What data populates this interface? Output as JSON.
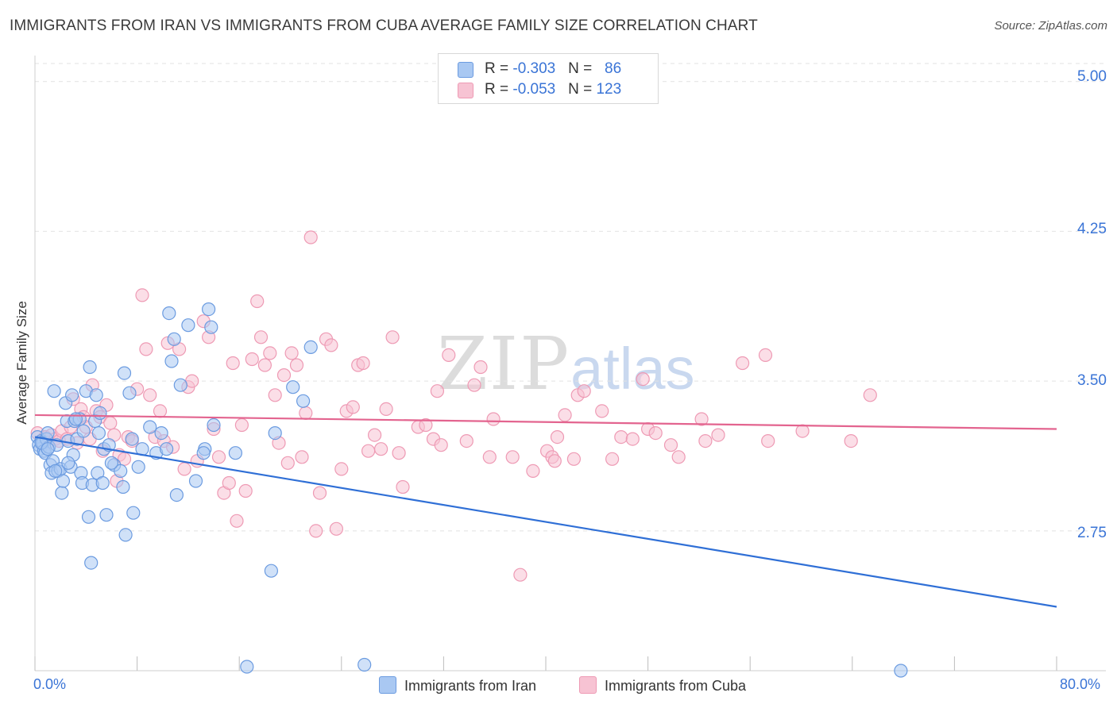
{
  "title": "IMMIGRANTS FROM IRAN VS IMMIGRANTS FROM CUBA AVERAGE FAMILY SIZE CORRELATION CHART",
  "source": "Source: ZipAtlas.com",
  "watermark": {
    "zip": "ZIP",
    "atlas": "atlas"
  },
  "legend": {
    "iran": {
      "r_label": "R = ",
      "r_value": "-0.303",
      "n_label": "N = ",
      "n_value": "86"
    },
    "cuba": {
      "r_label": "R = ",
      "r_value": "-0.053",
      "n_label": "N = ",
      "n_value": "123"
    }
  },
  "colors": {
    "iran_fill": "#a9c8f2",
    "iran_stroke": "#6b9be0",
    "iran_line": "#2f6fd6",
    "cuba_fill": "#f7c3d3",
    "cuba_stroke": "#ee9ab4",
    "cuba_line": "#e3648f",
    "axis_text": "#3a74d6",
    "grid": "#e2e2e2"
  },
  "chart_data": {
    "type": "scatter",
    "title": "IMMIGRANTS FROM IRAN VS IMMIGRANTS FROM CUBA AVERAGE FAMILY SIZE CORRELATION CHART",
    "xlabel": "",
    "ylabel": "Average Family Size",
    "x_tick_labels": [
      "0.0%",
      "80.0%"
    ],
    "y_tick_labels": [
      "5.00",
      "4.25",
      "3.50",
      "2.75"
    ],
    "y_ticks": [
      5.0,
      4.25,
      3.5,
      2.75
    ],
    "xlim": [
      0,
      80
    ],
    "ylim": [
      2.05,
      5.13
    ],
    "grid": true,
    "legend_position": "bottom",
    "series": [
      {
        "name": "Immigrants from Iran",
        "r": -0.303,
        "n": 86,
        "trend": {
          "x": [
            0,
            80
          ],
          "y": [
            3.22,
            2.37
          ]
        },
        "points": [
          [
            0.2,
            3.22
          ],
          [
            0.3,
            3.18
          ],
          [
            0.4,
            3.16
          ],
          [
            0.5,
            3.2
          ],
          [
            0.6,
            3.19
          ],
          [
            0.7,
            3.15
          ],
          [
            0.8,
            3.14
          ],
          [
            0.9,
            3.21
          ],
          [
            1.0,
            3.24
          ],
          [
            1.1,
            3.17
          ],
          [
            1.2,
            3.08
          ],
          [
            1.3,
            3.04
          ],
          [
            1.4,
            3.1
          ],
          [
            1.5,
            3.45
          ],
          [
            1.7,
            3.18
          ],
          [
            1.8,
            3.05
          ],
          [
            2.0,
            3.06
          ],
          [
            2.1,
            2.94
          ],
          [
            2.2,
            3.0
          ],
          [
            2.4,
            3.39
          ],
          [
            2.5,
            3.3
          ],
          [
            2.6,
            3.2
          ],
          [
            2.8,
            3.07
          ],
          [
            2.9,
            3.43
          ],
          [
            3.0,
            3.13
          ],
          [
            3.1,
            3.3
          ],
          [
            3.3,
            3.21
          ],
          [
            3.5,
            3.31
          ],
          [
            3.6,
            3.04
          ],
          [
            3.7,
            2.99
          ],
          [
            3.8,
            3.25
          ],
          [
            4.0,
            3.45
          ],
          [
            4.2,
            2.82
          ],
          [
            4.3,
            3.57
          ],
          [
            4.4,
            2.59
          ],
          [
            4.5,
            2.98
          ],
          [
            4.7,
            3.3
          ],
          [
            4.8,
            3.43
          ],
          [
            4.9,
            3.04
          ],
          [
            5.0,
            3.24
          ],
          [
            5.1,
            3.34
          ],
          [
            5.3,
            2.99
          ],
          [
            5.4,
            3.16
          ],
          [
            5.6,
            2.83
          ],
          [
            5.8,
            3.18
          ],
          [
            6.2,
            3.08
          ],
          [
            6.7,
            3.05
          ],
          [
            6.9,
            2.97
          ],
          [
            7.0,
            3.54
          ],
          [
            7.1,
            2.73
          ],
          [
            7.4,
            3.44
          ],
          [
            7.6,
            3.21
          ],
          [
            7.7,
            2.84
          ],
          [
            8.1,
            3.07
          ],
          [
            8.4,
            3.16
          ],
          [
            9.0,
            3.27
          ],
          [
            9.5,
            3.14
          ],
          [
            9.9,
            3.24
          ],
          [
            10.3,
            3.16
          ],
          [
            10.5,
            3.84
          ],
          [
            10.7,
            3.6
          ],
          [
            10.9,
            3.71
          ],
          [
            11.1,
            2.93
          ],
          [
            11.4,
            3.48
          ],
          [
            12.0,
            3.78
          ],
          [
            12.6,
            3.0
          ],
          [
            13.3,
            3.16
          ],
          [
            13.6,
            3.86
          ],
          [
            13.8,
            3.77
          ],
          [
            13.2,
            3.14
          ],
          [
            14.0,
            3.28
          ],
          [
            15.7,
            3.14
          ],
          [
            16.6,
            2.07
          ],
          [
            18.5,
            2.55
          ],
          [
            18.8,
            3.24
          ],
          [
            20.2,
            3.47
          ],
          [
            21.0,
            3.4
          ],
          [
            21.6,
            3.67
          ],
          [
            25.8,
            2.08
          ],
          [
            67.8,
            2.05
          ],
          [
            0.5,
            3.19
          ],
          [
            1.0,
            3.16
          ],
          [
            1.6,
            3.05
          ],
          [
            2.6,
            3.09
          ],
          [
            3.2,
            3.31
          ],
          [
            6.0,
            3.09
          ]
        ]
      },
      {
        "name": "Immigrants from Cuba",
        "r": -0.053,
        "n": 123,
        "trend": {
          "x": [
            0,
            80
          ],
          "y": [
            3.33,
            3.26
          ]
        },
        "points": [
          [
            0.2,
            3.24
          ],
          [
            0.5,
            3.2
          ],
          [
            0.8,
            3.22
          ],
          [
            1.0,
            3.19
          ],
          [
            1.3,
            3.23
          ],
          [
            1.6,
            3.21
          ],
          [
            1.9,
            3.2
          ],
          [
            2.1,
            3.25
          ],
          [
            2.5,
            3.21
          ],
          [
            2.8,
            3.27
          ],
          [
            3.0,
            3.41
          ],
          [
            3.3,
            3.19
          ],
          [
            3.6,
            3.36
          ],
          [
            3.8,
            3.32
          ],
          [
            4.0,
            3.27
          ],
          [
            4.3,
            3.21
          ],
          [
            4.5,
            3.48
          ],
          [
            4.8,
            3.35
          ],
          [
            5.1,
            3.32
          ],
          [
            5.3,
            3.15
          ],
          [
            5.6,
            3.38
          ],
          [
            5.9,
            3.29
          ],
          [
            6.2,
            3.23
          ],
          [
            6.4,
            3.0
          ],
          [
            6.6,
            3.13
          ],
          [
            7.0,
            3.11
          ],
          [
            7.3,
            3.22
          ],
          [
            7.6,
            3.2
          ],
          [
            8.0,
            3.46
          ],
          [
            8.4,
            3.93
          ],
          [
            8.7,
            3.66
          ],
          [
            9.0,
            3.43
          ],
          [
            9.4,
            3.22
          ],
          [
            9.8,
            3.35
          ],
          [
            10.1,
            3.2
          ],
          [
            10.4,
            3.69
          ],
          [
            10.8,
            3.17
          ],
          [
            11.3,
            3.66
          ],
          [
            11.7,
            3.06
          ],
          [
            12.0,
            3.47
          ],
          [
            12.3,
            3.5
          ],
          [
            12.7,
            3.1
          ],
          [
            13.2,
            3.8
          ],
          [
            13.6,
            3.72
          ],
          [
            14.0,
            3.26
          ],
          [
            14.4,
            3.12
          ],
          [
            14.8,
            2.94
          ],
          [
            15.2,
            2.99
          ],
          [
            15.5,
            3.59
          ],
          [
            15.8,
            2.8
          ],
          [
            16.2,
            3.28
          ],
          [
            16.5,
            2.95
          ],
          [
            17.0,
            3.61
          ],
          [
            17.4,
            3.9
          ],
          [
            17.7,
            3.72
          ],
          [
            18.0,
            3.58
          ],
          [
            18.4,
            3.64
          ],
          [
            18.8,
            3.43
          ],
          [
            19.1,
            3.19
          ],
          [
            19.5,
            3.53
          ],
          [
            19.8,
            3.09
          ],
          [
            20.1,
            3.64
          ],
          [
            20.5,
            3.58
          ],
          [
            20.9,
            3.12
          ],
          [
            21.2,
            3.34
          ],
          [
            21.6,
            4.22
          ],
          [
            22.0,
            2.75
          ],
          [
            22.3,
            2.94
          ],
          [
            22.8,
            3.71
          ],
          [
            23.2,
            3.68
          ],
          [
            23.6,
            2.76
          ],
          [
            24.0,
            3.06
          ],
          [
            24.4,
            3.35
          ],
          [
            24.9,
            3.37
          ],
          [
            25.3,
            3.58
          ],
          [
            25.7,
            3.59
          ],
          [
            26.1,
            3.15
          ],
          [
            26.6,
            3.23
          ],
          [
            27.1,
            3.16
          ],
          [
            27.5,
            3.36
          ],
          [
            28.0,
            3.72
          ],
          [
            28.5,
            3.14
          ],
          [
            28.8,
            2.97
          ],
          [
            30.0,
            3.27
          ],
          [
            30.6,
            3.28
          ],
          [
            31.2,
            3.21
          ],
          [
            31.5,
            3.45
          ],
          [
            31.8,
            3.18
          ],
          [
            32.4,
            3.63
          ],
          [
            33.8,
            3.2
          ],
          [
            34.4,
            3.48
          ],
          [
            34.9,
            3.57
          ],
          [
            35.6,
            3.12
          ],
          [
            35.9,
            3.31
          ],
          [
            37.4,
            3.12
          ],
          [
            38.0,
            2.53
          ],
          [
            39.0,
            3.05
          ],
          [
            40.1,
            3.15
          ],
          [
            40.5,
            3.12
          ],
          [
            40.7,
            3.1
          ],
          [
            40.9,
            3.22
          ],
          [
            41.5,
            3.33
          ],
          [
            42.2,
            3.11
          ],
          [
            42.5,
            3.43
          ],
          [
            43.0,
            3.45
          ],
          [
            44.4,
            3.35
          ],
          [
            45.2,
            3.11
          ],
          [
            45.9,
            3.22
          ],
          [
            46.8,
            3.21
          ],
          [
            47.6,
            3.51
          ],
          [
            48.0,
            3.26
          ],
          [
            48.6,
            3.24
          ],
          [
            49.8,
            3.18
          ],
          [
            50.4,
            3.12
          ],
          [
            52.2,
            3.31
          ],
          [
            52.5,
            3.2
          ],
          [
            53.5,
            3.23
          ],
          [
            55.4,
            3.59
          ],
          [
            57.2,
            3.63
          ],
          [
            57.4,
            3.2
          ],
          [
            60.1,
            3.25
          ],
          [
            63.9,
            3.2
          ],
          [
            65.4,
            3.43
          ]
        ]
      }
    ]
  },
  "bottom_legend": {
    "iran": "Immigrants from Iran",
    "cuba": "Immigrants from Cuba"
  }
}
